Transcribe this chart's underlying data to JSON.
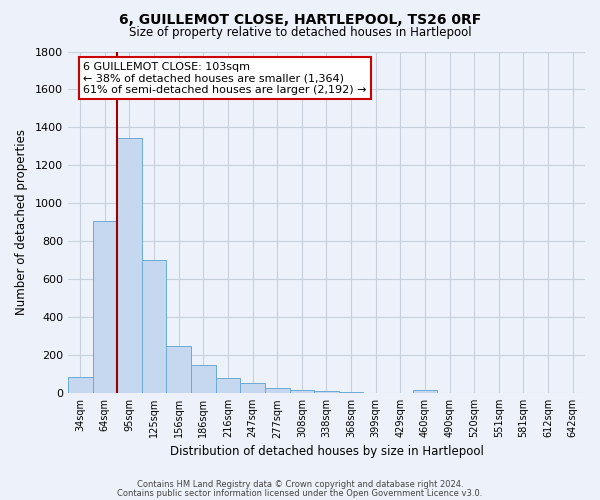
{
  "title": "6, GUILLEMOT CLOSE, HARTLEPOOL, TS26 0RF",
  "subtitle": "Size of property relative to detached houses in Hartlepool",
  "xlabel": "Distribution of detached houses by size in Hartlepool",
  "ylabel": "Number of detached properties",
  "bar_color": "#c5d8f0",
  "bar_edge_color": "#6aaad4",
  "background_color": "#edf2fa",
  "grid_color": "#c8d0dc",
  "ylim": [
    0,
    1800
  ],
  "yticks": [
    0,
    200,
    400,
    600,
    800,
    1000,
    1200,
    1400,
    1600,
    1800
  ],
  "categories": [
    "34sqm",
    "64sqm",
    "95sqm",
    "125sqm",
    "156sqm",
    "186sqm",
    "216sqm",
    "247sqm",
    "277sqm",
    "308sqm",
    "338sqm",
    "368sqm",
    "399sqm",
    "429sqm",
    "460sqm",
    "490sqm",
    "520sqm",
    "551sqm",
    "581sqm",
    "612sqm",
    "642sqm"
  ],
  "values": [
    85,
    905,
    1345,
    700,
    248,
    148,
    80,
    53,
    25,
    18,
    10,
    4,
    0,
    0,
    15,
    0,
    0,
    0,
    0,
    0,
    0
  ],
  "vline_index": 2,
  "vline_color": "#990000",
  "annotation_line1": "6 GUILLEMOT CLOSE: 103sqm",
  "annotation_line2": "← 38% of detached houses are smaller (1,364)",
  "annotation_line3": "61% of semi-detached houses are larger (2,192) →",
  "annotation_box_color": "#ffffff",
  "annotation_edge_color": "#cc0000",
  "footer1": "Contains HM Land Registry data © Crown copyright and database right 2024.",
  "footer2": "Contains public sector information licensed under the Open Government Licence v3.0."
}
